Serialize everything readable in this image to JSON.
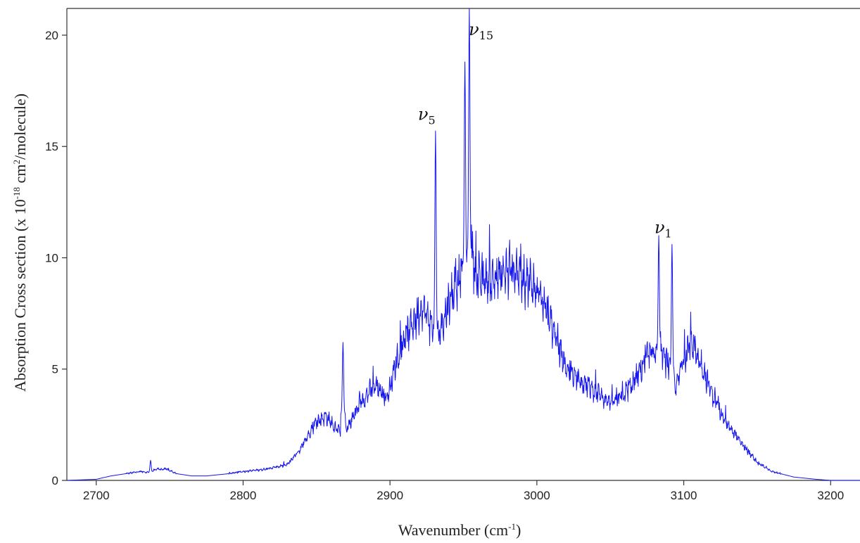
{
  "chart_data": {
    "type": "line",
    "xlabel_main": "Wavenumber (cm",
    "xlabel_sup": "-1",
    "xlabel_end": ")",
    "ylabel_main": "Absorption Cross section (x 10",
    "ylabel_sup1": "-18",
    "ylabel_mid": " cm",
    "ylabel_sup2": "2",
    "ylabel_end": "/molecule)",
    "xlim": [
      2680,
      3220
    ],
    "ylim": [
      0,
      21.2
    ],
    "xticks": [
      2700,
      2800,
      2900,
      3000,
      3100,
      3200
    ],
    "yticks": [
      0,
      5,
      10,
      15,
      20
    ],
    "line_color": "#1515ee",
    "series": [
      {
        "envelope_x": [
          2680,
          2700,
          2710,
          2720,
          2730,
          2737,
          2740,
          2748,
          2755,
          2765,
          2775,
          2790,
          2800,
          2815,
          2830,
          2840,
          2848,
          2856,
          2861,
          2866,
          2868,
          2870,
          2880,
          2890,
          2898,
          2905,
          2915,
          2922,
          2928,
          2933,
          2940,
          2950,
          2955,
          2960,
          2970,
          2985,
          3000,
          3010,
          3020,
          3030,
          3040,
          3050,
          3055,
          3065,
          3075,
          3083,
          3090,
          3095,
          3100,
          3105,
          3110,
          3120,
          3130,
          3140,
          3150,
          3160,
          3175,
          3190,
          3200,
          3220
        ],
        "envelope_y": [
          0.0,
          0.05,
          0.2,
          0.3,
          0.4,
          0.35,
          0.5,
          0.5,
          0.3,
          0.2,
          0.2,
          0.3,
          0.4,
          0.5,
          0.7,
          1.5,
          2.5,
          2.9,
          2.5,
          2.2,
          3.0,
          2.2,
          3.5,
          4.3,
          3.7,
          5.5,
          7.0,
          7.8,
          7.0,
          6.5,
          8.0,
          9.5,
          10.5,
          9.0,
          9.0,
          9.5,
          8.6,
          7.0,
          5.0,
          4.5,
          4.0,
          3.5,
          3.6,
          4.3,
          5.5,
          5.8,
          5.2,
          4.2,
          5.5,
          6.3,
          5.5,
          3.8,
          2.5,
          1.6,
          0.8,
          0.4,
          0.15,
          0.05,
          0.0,
          0.0
        ]
      }
    ],
    "peaks": [
      {
        "x": 2737,
        "y": 0.9
      },
      {
        "x": 2868,
        "y": 6.2
      },
      {
        "x": 2931,
        "y": 15.7
      },
      {
        "x": 2951,
        "y": 18.8
      },
      {
        "x": 2954,
        "y": 21.2
      },
      {
        "x": 3083,
        "y": 11.0
      },
      {
        "x": 3092,
        "y": 10.6
      }
    ],
    "annotations": [
      {
        "symbol": "ν",
        "sub": "5",
        "x": 2925,
        "y": 16.2
      },
      {
        "symbol": "ν",
        "sub": "15",
        "x": 2962,
        "y": 20.0
      },
      {
        "symbol": "ν",
        "sub": "1",
        "x": 3086,
        "y": 11.1
      }
    ]
  }
}
